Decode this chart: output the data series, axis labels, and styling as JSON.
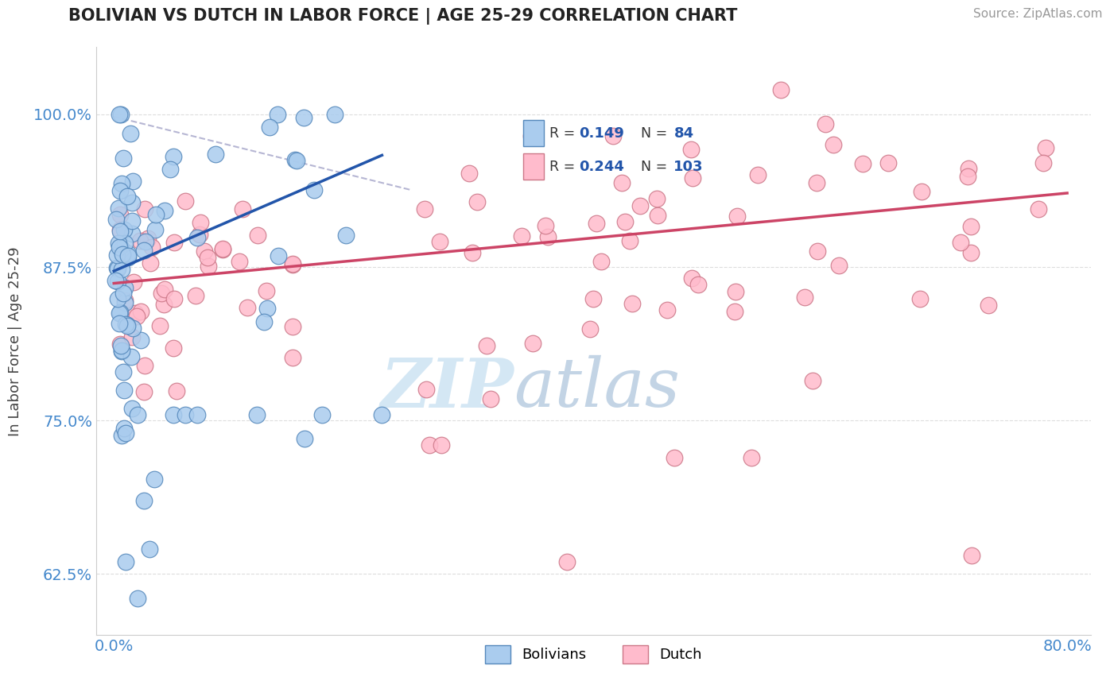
{
  "title": "BOLIVIAN VS DUTCH IN LABOR FORCE | AGE 25-29 CORRELATION CHART",
  "source": "Source: ZipAtlas.com",
  "ylabel": "In Labor Force | Age 25-29",
  "xlim": [
    -0.015,
    0.82
  ],
  "ylim": [
    0.575,
    1.055
  ],
  "yticks": [
    0.625,
    0.75,
    0.875,
    1.0
  ],
  "ytick_labels": [
    "62.5%",
    "75.0%",
    "87.5%",
    "100.0%"
  ],
  "xticks": [
    0.0,
    0.8
  ],
  "xtick_labels": [
    "0.0%",
    "80.0%"
  ],
  "bolivian_color": "#aaccee",
  "bolivian_edge": "#5588bb",
  "dutch_color": "#ffbbcc",
  "dutch_edge": "#cc7788",
  "trendline_bolivian_color": "#2255aa",
  "trendline_dutch_color": "#cc4466",
  "grid_color": "#dddddd",
  "watermark_color": "#cce4f5",
  "title_color": "#222222",
  "tick_color": "#4488cc",
  "ylabel_color": "#444444",
  "source_color": "#999999",
  "legend_bg": "#f8f8f8",
  "dashed_color": "#aaaacc"
}
